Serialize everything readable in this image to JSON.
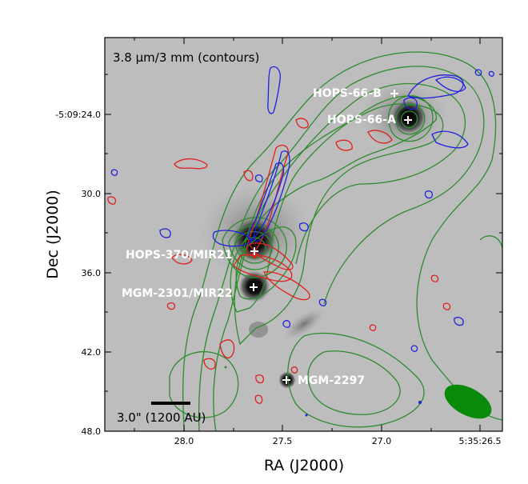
{
  "figure": {
    "title": "3.8 μm/3 mm (contours)",
    "scalebar_label": "3.0\" (1200 AU)",
    "xlabel": "RA (J2000)",
    "ylabel": "Dec (J2000)",
    "x_ticks": [
      "28.0",
      "27.5",
      "27.0",
      "5:35:26.5"
    ],
    "y_ticks": [
      "-5:09:24.0",
      "30.0",
      "36.0",
      "42.0",
      "48.0"
    ],
    "sources": [
      {
        "name": "HOPS-66-B"
      },
      {
        "name": "HOPS-66-A"
      },
      {
        "name": "HOPS-370/MIR21"
      },
      {
        "name": "MGM-2301/MIR22"
      },
      {
        "name": "MGM-2297"
      }
    ],
    "colors": {
      "contours_3mm": "#2e8b2e",
      "redshifted": "#e02020",
      "blueshifted": "#2020e0",
      "beam": "#0a8a0a",
      "marker": "#ffffff"
    }
  }
}
